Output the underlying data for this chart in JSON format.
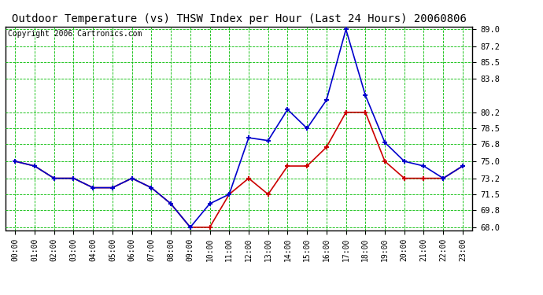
{
  "title": "Outdoor Temperature (vs) THSW Index per Hour (Last 24 Hours) 20060806",
  "copyright": "Copyright 2006 Cartronics.com",
  "hours": [
    "00:00",
    "01:00",
    "02:00",
    "03:00",
    "04:00",
    "05:00",
    "06:00",
    "07:00",
    "08:00",
    "09:00",
    "10:00",
    "11:00",
    "12:00",
    "13:00",
    "14:00",
    "15:00",
    "16:00",
    "17:00",
    "18:00",
    "19:00",
    "20:00",
    "21:00",
    "22:00",
    "23:00"
  ],
  "temp_red": [
    75.0,
    74.5,
    73.2,
    73.2,
    72.2,
    72.2,
    73.2,
    72.2,
    70.5,
    68.0,
    68.0,
    71.5,
    73.2,
    71.5,
    74.5,
    74.5,
    76.5,
    80.2,
    80.2,
    75.0,
    73.2,
    73.2,
    73.2,
    74.5
  ],
  "thsw_blue": [
    75.0,
    74.5,
    73.2,
    73.2,
    72.2,
    72.2,
    73.2,
    72.2,
    70.5,
    68.0,
    70.5,
    71.5,
    77.5,
    77.2,
    80.5,
    78.5,
    81.5,
    89.0,
    82.0,
    77.0,
    75.0,
    74.5,
    73.2,
    74.5
  ],
  "yticks": [
    68.0,
    69.8,
    71.5,
    73.2,
    75.0,
    76.8,
    78.5,
    80.2,
    83.8,
    85.5,
    87.2,
    89.0
  ],
  "bg_color": "#ffffff",
  "plot_bg": "#ffffff",
  "grid_color": "#00bb00",
  "red_color": "#cc0000",
  "blue_color": "#0000cc",
  "title_fontsize": 10,
  "copyright_fontsize": 7
}
